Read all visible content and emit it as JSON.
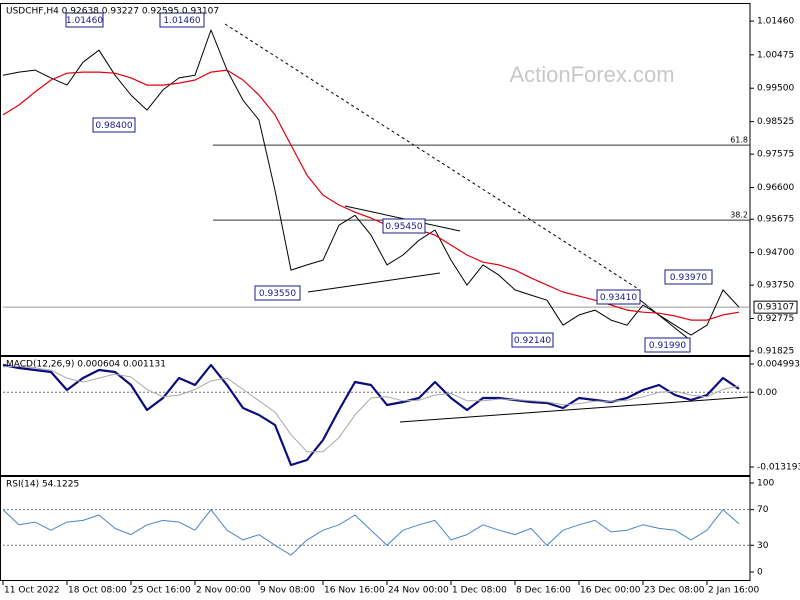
{
  "watermark": "ActionForex.com",
  "chart_data": [
    {
      "type": "line",
      "title": "USDCHF,H4  0.92638 0.93227 0.92595 0.93107",
      "x": [
        0,
        8,
        16,
        24,
        32,
        40,
        48,
        56,
        64,
        72,
        80,
        88,
        96,
        104,
        112,
        120,
        128,
        136,
        144,
        152,
        160,
        168,
        176,
        184,
        192,
        200,
        208,
        216,
        224,
        232,
        240,
        248,
        256,
        264,
        272,
        280,
        288,
        296,
        304,
        312,
        320,
        328,
        336,
        344,
        352,
        360,
        368
      ],
      "xlim": [
        0,
        373.5
      ],
      "ylim": [
        0.9171,
        1.0193
      ],
      "yticks": [
        {
          "value": 1.0146,
          "label": "1.01460"
        },
        1.00475,
        {
          "value": 0.995,
          "label": "0.99500"
        },
        0.98525,
        0.97575,
        {
          "value": 0.966,
          "label": "0.96600"
        },
        0.95675,
        {
          "value": 0.947,
          "label": "0.94700"
        },
        {
          "value": 0.9375,
          "label": "0.93750"
        },
        0.92775,
        0.91825
      ],
      "series": [
        {
          "color": "#000000",
          "values": [
            0.9988,
            0.9997,
            1.0003,
            0.998,
            0.9959,
            1.0026,
            1.0061,
            0.9988,
            0.993,
            0.9886,
            0.9945,
            0.998,
            0.9988,
            1.012,
            1.0003,
            0.9915,
            0.9857,
            0.9652,
            0.9419,
            0.9434,
            0.9448,
            0.955,
            0.9579,
            0.9521,
            0.9434,
            0.9463,
            0.9506,
            0.9536,
            0.9448,
            0.9375,
            0.9434,
            0.9404,
            0.9361,
            0.9346,
            0.9331,
            0.9258,
            0.9288,
            0.9302,
            0.9273,
            0.9258,
            0.9317,
            0.9288,
            0.9258,
            0.9229,
            0.9258,
            0.9361,
            0.9311
          ]
        },
        {
          "color": "#e3000f",
          "values": [
            0.9872,
            0.9901,
            0.9939,
            0.9974,
            0.9994,
            0.9997,
            0.9997,
            0.9994,
            0.998,
            0.9959,
            0.9959,
            0.9965,
            0.9974,
            0.9997,
            1.0003,
            0.9974,
            0.993,
            0.9872,
            0.9784,
            0.9696,
            0.9638,
            0.9609,
            0.9588,
            0.9571,
            0.955,
            0.9542,
            0.9536,
            0.9521,
            0.9492,
            0.9463,
            0.9442,
            0.9434,
            0.9419,
            0.9396,
            0.9375,
            0.9355,
            0.9343,
            0.9331,
            0.9317,
            0.9302,
            0.9296,
            0.9293,
            0.9285,
            0.9273,
            0.9273,
            0.9288,
            0.9296
          ]
        }
      ],
      "hlines": [
        {
          "value": 0.9784,
          "label": "61.8"
        },
        {
          "value": 0.9565,
          "label": "38.2"
        }
      ],
      "last_price": {
        "value": 0.93107,
        "label": "0.93107"
      },
      "annotations": [
        "1.01460",
        "1.01460",
        "0.98400",
        "0.93550",
        "0.95450",
        "0.92140",
        "0.93410",
        "0.91990",
        "0.93970"
      ]
    },
    {
      "type": "line",
      "title": "MACD(12,26,9) 0.000604 0.001131",
      "x": [
        0,
        8,
        16,
        24,
        32,
        40,
        48,
        56,
        64,
        72,
        80,
        88,
        96,
        104,
        112,
        120,
        128,
        136,
        144,
        152,
        160,
        168,
        176,
        184,
        192,
        200,
        208,
        216,
        224,
        232,
        240,
        248,
        256,
        264,
        272,
        280,
        288,
        296,
        304,
        312,
        320,
        328,
        336,
        344,
        352,
        360,
        368
      ],
      "xlim": [
        0,
        373.5
      ],
      "ylim": [
        -0.01461,
        0.00605
      ],
      "yticks": [
        0.004993,
        {
          "value": 0,
          "label": "0.00"
        },
        -0.013193
      ],
      "levels": [
        0
      ],
      "series": [
        {
          "color": "#0b0b7d",
          "values": [
            0.00482,
            0.00429,
            0.00393,
            0.00358,
            0.0004,
            0.00252,
            0.00393,
            0.00358,
            0.00128,
            -0.00313,
            -0.00101,
            0.00252,
            0.00128,
            0.00482,
            0.00128,
            -0.00278,
            -0.00402,
            -0.00578,
            -0.01285,
            -0.01196,
            -0.00843,
            -0.00313,
            0.00181,
            0.00128,
            -0.00225,
            -0.00172,
            -0.00101,
            0.00181,
            -0.00101,
            -0.00313,
            -0.00101,
            -0.00101,
            -0.00137,
            -0.00172,
            -0.0019,
            -0.00278,
            -0.00101,
            -0.00137,
            -0.00172,
            -0.00101,
            0.0004,
            0.00128,
            -0.00048,
            -0.00137,
            -0.00048,
            0.00252,
            0.0006
          ]
        },
        {
          "color": "#a9a9a9",
          "values": [
            0.0045,
            0.0046,
            0.0043,
            0.0039,
            0.0025,
            0.0018,
            0.0025,
            0.0032,
            0.0027,
            0.0005,
            -0.0008,
            -0.0005,
            0.0005,
            0.002,
            0.0025,
            0.0005,
            -0.0015,
            -0.0035,
            -0.0075,
            -0.0105,
            -0.0105,
            -0.008,
            -0.004,
            -0.001,
            -0.0008,
            -0.0015,
            -0.0014,
            -0.0005,
            -0.0002,
            -0.0015,
            -0.0015,
            -0.0012,
            -0.0013,
            -0.0015,
            -0.0017,
            -0.0022,
            -0.002,
            -0.0016,
            -0.0016,
            -0.0014,
            -0.0008,
            0,
            0.0002,
            -0.0005,
            -0.0008,
            0.0005,
            0.0011
          ]
        }
      ]
    },
    {
      "type": "line",
      "title": "RSI(14) 54.1225",
      "x": [
        0,
        8,
        16,
        24,
        32,
        40,
        48,
        56,
        64,
        72,
        80,
        88,
        96,
        104,
        112,
        120,
        128,
        136,
        144,
        152,
        160,
        168,
        176,
        184,
        192,
        200,
        208,
        216,
        224,
        232,
        240,
        248,
        256,
        264,
        272,
        280,
        288,
        296,
        304,
        312,
        320,
        328,
        336,
        344,
        352,
        360,
        368
      ],
      "xlim": [
        0,
        373.5
      ],
      "ylim": [
        -9,
        105.6
      ],
      "yticks": [
        100,
        70,
        30,
        0
      ],
      "levels": [
        70,
        30
      ],
      "xticks": [
        {
          "value": 0,
          "label": "11 Oct 2022"
        },
        {
          "value": 32,
          "label": "18 Oct 08:00"
        },
        {
          "value": 64,
          "label": "25 Oct 16:00"
        },
        {
          "value": 96,
          "label": "2 Nov 00:00"
        },
        {
          "value": 128,
          "label": "9 Nov 08:00"
        },
        {
          "value": 160,
          "label": "16 Nov 16:00"
        },
        {
          "value": 192,
          "label": "24 Nov 00:00"
        },
        {
          "value": 224,
          "label": "1 Dec 08:00"
        },
        {
          "value": 256,
          "label": "8 Dec 16:00"
        },
        {
          "value": 288,
          "label": "16 Dec 00:00"
        },
        {
          "value": 320,
          "label": "23 Dec 08:00"
        },
        {
          "value": 352,
          "label": "2 Jan 16:00"
        }
      ],
      "series": [
        {
          "color": "#4a86c8",
          "values": [
            70,
            53,
            56,
            47,
            56,
            58,
            64,
            49,
            42,
            53,
            58,
            56,
            47,
            70,
            47,
            36,
            42,
            30,
            19,
            36,
            47,
            53,
            64,
            47,
            30,
            47,
            53,
            58,
            36,
            42,
            53,
            47,
            42,
            49,
            30,
            47,
            53,
            58,
            45,
            47,
            53,
            49,
            47,
            36,
            47,
            70,
            54.1225
          ]
        }
      ]
    }
  ]
}
